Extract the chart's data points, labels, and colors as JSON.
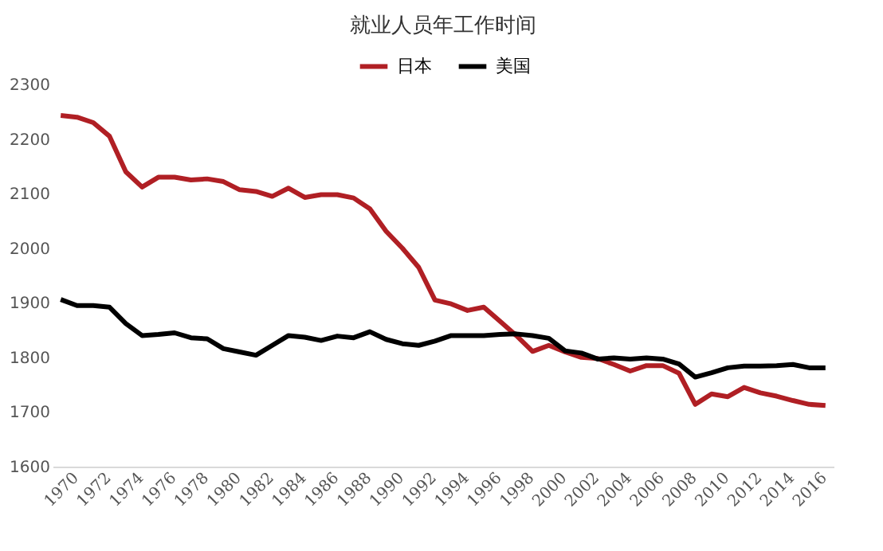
{
  "chart_data": {
    "type": "line",
    "title": "就业人员年工作时间",
    "categories": [
      "1970",
      null,
      "1972",
      null,
      "1974",
      null,
      "1976",
      null,
      "1978",
      null,
      "1980",
      null,
      "1982",
      null,
      "1984",
      null,
      "1986",
      null,
      "1988",
      null,
      "1990",
      null,
      "1992",
      null,
      "1994",
      null,
      "1996",
      null,
      "1998",
      null,
      "2000",
      null,
      "2002",
      null,
      "2004",
      null,
      "2006",
      null,
      "2008",
      null,
      "2010",
      null,
      "2012",
      null,
      "2014",
      null,
      "2016",
      null
    ],
    "series": [
      {
        "name": "日本",
        "color": "#b01f24",
        "values": [
          2243,
          2240,
          2230,
          2205,
          2140,
          2112,
          2130,
          2130,
          2125,
          2127,
          2122,
          2107,
          2104,
          2095,
          2110,
          2093,
          2098,
          2098,
          2092,
          2072,
          2031,
          2000,
          1965,
          1905,
          1898,
          1886,
          1892,
          1866,
          1840,
          1811,
          1822,
          1810,
          1800,
          1798,
          1787,
          1775,
          1785,
          1785,
          1771,
          1714,
          1733,
          1728,
          1745,
          1735,
          1729,
          1721,
          1714,
          1712
        ]
      },
      {
        "name": "美国",
        "color": "#000000",
        "values": [
          1906,
          1895,
          1895,
          1892,
          1862,
          1840,
          1842,
          1845,
          1836,
          1834,
          1816,
          1810,
          1804,
          1822,
          1840,
          1837,
          1831,
          1839,
          1836,
          1847,
          1833,
          1825,
          1822,
          1830,
          1840,
          1840,
          1840,
          1842,
          1843,
          1840,
          1835,
          1812,
          1808,
          1797,
          1799,
          1797,
          1799,
          1797,
          1788,
          1764,
          1772,
          1781,
          1784,
          1784,
          1785,
          1787,
          1781,
          1781
        ]
      }
    ],
    "ylim": [
      1600,
      2300
    ],
    "yticks": [
      1600,
      1700,
      1800,
      1900,
      2000,
      2100,
      2200,
      2300
    ],
    "grid": false,
    "legend": "top",
    "line_style": "solid",
    "marker": "none"
  }
}
